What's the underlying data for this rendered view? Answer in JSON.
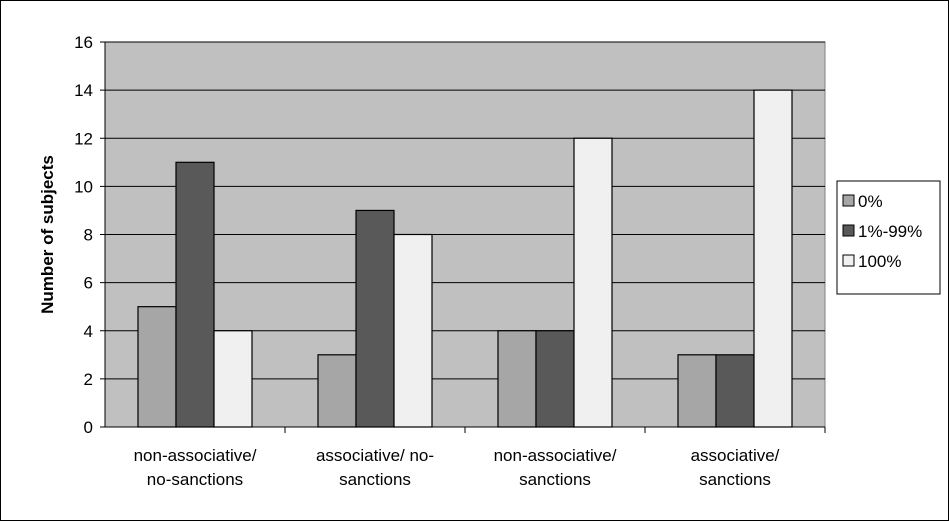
{
  "chart_data": {
    "type": "bar",
    "title": "",
    "xlabel": "",
    "ylabel": "Number of subjects",
    "ylim": [
      0,
      16
    ],
    "yticks": [
      0,
      2,
      4,
      6,
      8,
      10,
      12,
      14,
      16
    ],
    "grid": true,
    "legend_position": "right",
    "categories": [
      [
        "non-associative/",
        "no-sanctions"
      ],
      [
        "associative/ no-",
        "sanctions"
      ],
      [
        "non-associative/",
        "sanctions"
      ],
      [
        "associative/",
        "sanctions"
      ]
    ],
    "series": [
      {
        "name": "0%",
        "color": "#a6a6a6",
        "values": [
          5,
          3,
          4,
          3
        ]
      },
      {
        "name": "1%-99%",
        "color": "#595959",
        "values": [
          11,
          9,
          4,
          3
        ]
      },
      {
        "name": "100%",
        "color": "#f0f0f0",
        "values": [
          4,
          8,
          12,
          14
        ]
      }
    ],
    "plot_background": "#c0c0c0"
  }
}
